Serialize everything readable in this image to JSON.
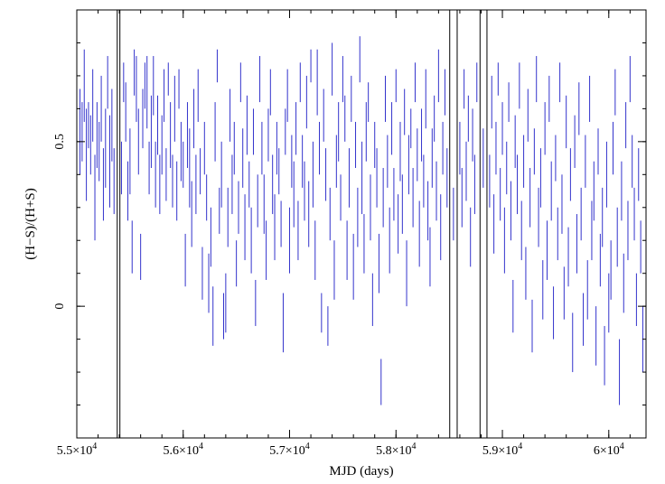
{
  "chart_data": {
    "type": "errorbar",
    "xlabel": "MJD (days)",
    "ylabel": "(H−S)/(H+S)",
    "xlim": [
      55000,
      60350
    ],
    "ylim": [
      -0.4,
      0.9
    ],
    "x_ticks": [
      {
        "value": 55000,
        "label": "5.5×10",
        "exp": "4"
      },
      {
        "value": 56000,
        "label": "5.6×10",
        "exp": "4"
      },
      {
        "value": 57000,
        "label": "5.7×10",
        "exp": "4"
      },
      {
        "value": 58000,
        "label": "5.8×10",
        "exp": "4"
      },
      {
        "value": 59000,
        "label": "5.9×10",
        "exp": "4"
      },
      {
        "value": 60000,
        "label": "6×10",
        "exp": "4"
      }
    ],
    "y_ticks": [
      {
        "value": 0,
        "label": "0"
      },
      {
        "value": 0.5,
        "label": "0.5"
      }
    ],
    "series_color": "#3333cc",
    "vertical_lines": [
      55380,
      55405,
      58505,
      58575,
      58790,
      58855
    ],
    "vertical_line_color": "#000000",
    "segments": [
      [
        55030,
        0.4,
        0.66
      ],
      [
        55050,
        0.44,
        0.62
      ],
      [
        55070,
        0.56,
        0.78
      ],
      [
        55090,
        0.32,
        0.6
      ],
      [
        55110,
        0.48,
        0.62
      ],
      [
        55130,
        0.4,
        0.58
      ],
      [
        55150,
        0.5,
        0.72
      ],
      [
        55170,
        0.2,
        0.46
      ],
      [
        55190,
        0.42,
        0.62
      ],
      [
        55210,
        0.38,
        0.56
      ],
      [
        55230,
        0.5,
        0.7
      ],
      [
        55250,
        0.26,
        0.48
      ],
      [
        55270,
        0.36,
        0.6
      ],
      [
        55290,
        0.6,
        0.76
      ],
      [
        55310,
        0.3,
        0.58
      ],
      [
        55330,
        0.44,
        0.66
      ],
      [
        55350,
        0.28,
        0.48
      ],
      [
        55420,
        0.34,
        0.5
      ],
      [
        55440,
        0.62,
        0.74
      ],
      [
        55460,
        0.5,
        0.68
      ],
      [
        55480,
        0.26,
        0.44
      ],
      [
        55500,
        0.34,
        0.54
      ],
      [
        55520,
        0.1,
        0.26
      ],
      [
        55540,
        0.64,
        0.78
      ],
      [
        55560,
        0.56,
        0.76
      ],
      [
        55580,
        0.4,
        0.6
      ],
      [
        55600,
        0.08,
        0.22
      ],
      [
        55620,
        0.48,
        0.66
      ],
      [
        55640,
        0.6,
        0.74
      ],
      [
        55660,
        0.54,
        0.76
      ],
      [
        55680,
        0.34,
        0.5
      ],
      [
        55700,
        0.42,
        0.64
      ],
      [
        55720,
        0.58,
        0.76
      ],
      [
        55740,
        0.3,
        0.5
      ],
      [
        55760,
        0.46,
        0.64
      ],
      [
        55780,
        0.28,
        0.46
      ],
      [
        55800,
        0.4,
        0.58
      ],
      [
        55820,
        0.56,
        0.72
      ],
      [
        55840,
        0.32,
        0.48
      ],
      [
        55860,
        0.64,
        0.74
      ],
      [
        55880,
        0.42,
        0.62
      ],
      [
        55900,
        0.3,
        0.46
      ],
      [
        55920,
        0.5,
        0.7
      ],
      [
        55940,
        0.26,
        0.44
      ],
      [
        55960,
        0.6,
        0.72
      ],
      [
        55980,
        0.38,
        0.56
      ],
      [
        56000,
        0.36,
        0.5
      ],
      [
        56020,
        0.06,
        0.22
      ],
      [
        56040,
        0.42,
        0.62
      ],
      [
        56060,
        0.3,
        0.54
      ],
      [
        56080,
        0.18,
        0.38
      ],
      [
        56100,
        0.48,
        0.66
      ],
      [
        56120,
        0.28,
        0.46
      ],
      [
        56140,
        0.56,
        0.72
      ],
      [
        56160,
        0.34,
        0.48
      ],
      [
        56180,
        0.02,
        0.18
      ],
      [
        56200,
        0.4,
        0.56
      ],
      [
        56220,
        0.26,
        0.4
      ],
      [
        56240,
        -0.02,
        0.16
      ],
      [
        56260,
        0.12,
        0.3
      ],
      [
        56280,
        -0.12,
        0.06
      ],
      [
        56300,
        0.44,
        0.62
      ],
      [
        56320,
        0.68,
        0.78
      ],
      [
        56340,
        0.22,
        0.36
      ],
      [
        56360,
        0.3,
        0.5
      ],
      [
        56380,
        -0.1,
        0.04
      ],
      [
        56400,
        -0.08,
        0.1
      ],
      [
        56420,
        0.18,
        0.36
      ],
      [
        56440,
        0.5,
        0.66
      ],
      [
        56460,
        0.28,
        0.46
      ],
      [
        56480,
        0.4,
        0.56
      ],
      [
        56500,
        0.06,
        0.2
      ],
      [
        56520,
        0.22,
        0.38
      ],
      [
        56540,
        0.62,
        0.74
      ],
      [
        56560,
        0.36,
        0.54
      ],
      [
        56580,
        0.14,
        0.34
      ],
      [
        56600,
        0.46,
        0.64
      ],
      [
        56620,
        0.3,
        0.44
      ],
      [
        56640,
        0.1,
        0.3
      ],
      [
        56660,
        0.46,
        0.6
      ],
      [
        56680,
        -0.06,
        0.08
      ],
      [
        56700,
        0.24,
        0.4
      ],
      [
        56720,
        0.62,
        0.76
      ],
      [
        56740,
        0.4,
        0.56
      ],
      [
        56760,
        0.22,
        0.4
      ],
      [
        56780,
        0.08,
        0.26
      ],
      [
        56800,
        0.44,
        0.6
      ],
      [
        56820,
        0.58,
        0.72
      ],
      [
        56840,
        0.28,
        0.46
      ],
      [
        56860,
        0.14,
        0.34
      ],
      [
        56880,
        0.4,
        0.56
      ],
      [
        56900,
        0.34,
        0.48
      ],
      [
        56920,
        0.18,
        0.32
      ],
      [
        56940,
        -0.14,
        0.04
      ],
      [
        56960,
        0.46,
        0.6
      ],
      [
        56980,
        0.56,
        0.72
      ],
      [
        57000,
        0.1,
        0.3
      ],
      [
        57020,
        0.36,
        0.52
      ],
      [
        57040,
        0.24,
        0.44
      ],
      [
        57060,
        0.46,
        0.62
      ],
      [
        57080,
        0.14,
        0.32
      ],
      [
        57100,
        0.62,
        0.74
      ],
      [
        57120,
        0.36,
        0.52
      ],
      [
        57140,
        0.26,
        0.44
      ],
      [
        57160,
        0.54,
        0.7
      ],
      [
        57180,
        0.18,
        0.38
      ],
      [
        57200,
        0.68,
        0.78
      ],
      [
        57220,
        0.3,
        0.5
      ],
      [
        57240,
        0.08,
        0.26
      ],
      [
        57260,
        0.58,
        0.78
      ],
      [
        57280,
        0.4,
        0.56
      ],
      [
        57300,
        -0.08,
        0.04
      ],
      [
        57320,
        0.5,
        0.66
      ],
      [
        57340,
        0.32,
        0.48
      ],
      [
        57360,
        -0.12,
        0.0
      ],
      [
        57380,
        0.2,
        0.36
      ],
      [
        57400,
        0.64,
        0.8
      ],
      [
        57420,
        0.02,
        0.2
      ],
      [
        57440,
        0.36,
        0.52
      ],
      [
        57460,
        0.44,
        0.62
      ],
      [
        57480,
        0.26,
        0.4
      ],
      [
        57500,
        0.62,
        0.76
      ],
      [
        57520,
        0.5,
        0.64
      ],
      [
        57540,
        0.08,
        0.26
      ],
      [
        57560,
        0.3,
        0.48
      ],
      [
        57580,
        0.56,
        0.7
      ],
      [
        57600,
        0.02,
        0.22
      ],
      [
        57620,
        0.42,
        0.56
      ],
      [
        57640,
        0.18,
        0.36
      ],
      [
        57660,
        0.68,
        0.82
      ],
      [
        57680,
        0.28,
        0.5
      ],
      [
        57700,
        0.1,
        0.28
      ],
      [
        57720,
        0.44,
        0.62
      ],
      [
        57740,
        0.56,
        0.68
      ],
      [
        57760,
        0.2,
        0.4
      ],
      [
        57780,
        -0.06,
        0.1
      ],
      [
        57800,
        0.42,
        0.56
      ],
      [
        57820,
        0.3,
        0.48
      ],
      [
        57840,
        0.04,
        0.22
      ],
      [
        57860,
        -0.3,
        -0.16
      ],
      [
        57880,
        0.24,
        0.42
      ],
      [
        57900,
        0.56,
        0.7
      ],
      [
        57920,
        0.36,
        0.52
      ],
      [
        57940,
        0.1,
        0.3
      ],
      [
        57960,
        0.46,
        0.62
      ],
      [
        57980,
        0.26,
        0.42
      ],
      [
        58000,
        0.62,
        0.72
      ],
      [
        58020,
        0.16,
        0.34
      ],
      [
        58040,
        0.38,
        0.56
      ],
      [
        58060,
        0.22,
        0.4
      ],
      [
        58080,
        0.52,
        0.66
      ],
      [
        58100,
        0.0,
        0.2
      ],
      [
        58120,
        0.34,
        0.52
      ],
      [
        58140,
        0.48,
        0.6
      ],
      [
        58160,
        0.24,
        0.42
      ],
      [
        58180,
        0.62,
        0.74
      ],
      [
        58200,
        0.38,
        0.54
      ],
      [
        58220,
        0.12,
        0.32
      ],
      [
        58240,
        0.44,
        0.6
      ],
      [
        58260,
        0.3,
        0.46
      ],
      [
        58280,
        0.54,
        0.72
      ],
      [
        58300,
        0.2,
        0.38
      ],
      [
        58320,
        0.06,
        0.24
      ],
      [
        58340,
        0.36,
        0.54
      ],
      [
        58360,
        0.5,
        0.64
      ],
      [
        58380,
        0.26,
        0.44
      ],
      [
        58400,
        0.62,
        0.78
      ],
      [
        58420,
        0.14,
        0.34
      ],
      [
        58440,
        0.4,
        0.56
      ],
      [
        58460,
        0.58,
        0.72
      ],
      [
        58480,
        0.3,
        0.48
      ],
      [
        58540,
        0.2,
        0.36
      ],
      [
        58600,
        0.4,
        0.56
      ],
      [
        58620,
        0.24,
        0.42
      ],
      [
        58640,
        0.6,
        0.72
      ],
      [
        58660,
        0.32,
        0.5
      ],
      [
        58680,
        0.5,
        0.64
      ],
      [
        58700,
        0.12,
        0.3
      ],
      [
        58720,
        0.44,
        0.6
      ],
      [
        58740,
        0.28,
        0.46
      ],
      [
        58760,
        0.62,
        0.74
      ],
      [
        58820,
        0.36,
        0.54
      ],
      [
        58880,
        0.3,
        0.46
      ],
      [
        58900,
        0.54,
        0.7
      ],
      [
        58920,
        0.16,
        0.34
      ],
      [
        58940,
        0.4,
        0.56
      ],
      [
        58960,
        0.64,
        0.74
      ],
      [
        58980,
        0.26,
        0.42
      ],
      [
        59000,
        0.46,
        0.62
      ],
      [
        59020,
        0.1,
        0.3
      ],
      [
        59040,
        0.34,
        0.5
      ],
      [
        59060,
        0.56,
        0.68
      ],
      [
        59080,
        0.2,
        0.38
      ],
      [
        59100,
        -0.08,
        0.08
      ],
      [
        59120,
        0.42,
        0.58
      ],
      [
        59140,
        0.28,
        0.46
      ],
      [
        59160,
        0.6,
        0.74
      ],
      [
        59180,
        0.14,
        0.32
      ],
      [
        59200,
        0.36,
        0.52
      ],
      [
        59220,
        0.02,
        0.18
      ],
      [
        59240,
        0.5,
        0.66
      ],
      [
        59260,
        0.24,
        0.42
      ],
      [
        59280,
        -0.14,
        0.02
      ],
      [
        59300,
        0.4,
        0.54
      ],
      [
        59320,
        0.62,
        0.76
      ],
      [
        59340,
        0.18,
        0.36
      ],
      [
        59360,
        0.3,
        0.48
      ],
      [
        59380,
        -0.04,
        0.14
      ],
      [
        59400,
        0.46,
        0.62
      ],
      [
        59420,
        0.08,
        0.26
      ],
      [
        59440,
        0.56,
        0.7
      ],
      [
        59460,
        0.26,
        0.44
      ],
      [
        59480,
        -0.1,
        0.06
      ],
      [
        59500,
        0.38,
        0.52
      ],
      [
        59520,
        0.14,
        0.3
      ],
      [
        59540,
        0.62,
        0.74
      ],
      [
        59560,
        0.22,
        0.4
      ],
      [
        59580,
        -0.04,
        0.12
      ],
      [
        59600,
        0.48,
        0.64
      ],
      [
        59620,
        0.06,
        0.24
      ],
      [
        59640,
        0.32,
        0.48
      ],
      [
        59660,
        -0.2,
        -0.02
      ],
      [
        59680,
        0.42,
        0.58
      ],
      [
        59700,
        0.1,
        0.28
      ],
      [
        59720,
        0.52,
        0.68
      ],
      [
        59740,
        0.2,
        0.36
      ],
      [
        59760,
        -0.12,
        0.04
      ],
      [
        59780,
        0.36,
        0.52
      ],
      [
        59800,
        -0.04,
        0.14
      ],
      [
        59820,
        0.56,
        0.7
      ],
      [
        59840,
        0.14,
        0.32
      ],
      [
        59860,
        0.26,
        0.44
      ],
      [
        59880,
        -0.18,
        0.0
      ],
      [
        59900,
        0.4,
        0.54
      ],
      [
        59920,
        0.06,
        0.22
      ],
      [
        59940,
        0.18,
        0.36
      ],
      [
        59960,
        -0.24,
        -0.06
      ],
      [
        59980,
        0.3,
        0.5
      ],
      [
        60000,
        -0.08,
        0.1
      ],
      [
        60020,
        0.02,
        0.2
      ],
      [
        60040,
        0.4,
        0.56
      ],
      [
        60060,
        0.58,
        0.72
      ],
      [
        60080,
        0.12,
        0.3
      ],
      [
        60100,
        -0.3,
        -0.1
      ],
      [
        60120,
        0.26,
        0.44
      ],
      [
        60140,
        -0.02,
        0.16
      ],
      [
        60160,
        0.48,
        0.62
      ],
      [
        60180,
        0.14,
        0.32
      ],
      [
        60200,
        0.62,
        0.76
      ],
      [
        60220,
        0.36,
        0.52
      ],
      [
        60240,
        0.2,
        0.36
      ],
      [
        60260,
        -0.06,
        0.1
      ],
      [
        60280,
        0.32,
        0.48
      ],
      [
        60300,
        0.1,
        0.26
      ],
      [
        60320,
        -0.2,
        0.0
      ]
    ]
  }
}
